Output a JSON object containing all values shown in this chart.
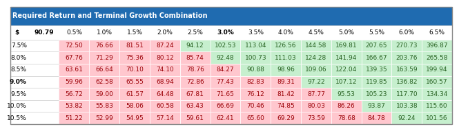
{
  "title": "Required Return and Terminal Growth Combination",
  "title_bg": "#1F6BB0",
  "title_color": "#FFFFFF",
  "header_label_topleft": "$",
  "col_ref_label": "90.79",
  "row_labels": [
    "7.5%",
    "8.0%",
    "8.5%",
    "9.0%",
    "9.5%",
    "10.0%",
    "10.5%"
  ],
  "col_labels": [
    "0.5%",
    "1.0%",
    "1.5%",
    "2.0%",
    "2.5%",
    "3.0%",
    "3.5%",
    "4.0%",
    "4.5%",
    "5.0%",
    "5.5%",
    "6.0%",
    "6.5%"
  ],
  "values": [
    [
      72.5,
      76.66,
      81.51,
      87.24,
      94.12,
      102.53,
      113.04,
      126.56,
      144.58,
      169.81,
      207.65,
      270.73,
      396.87
    ],
    [
      67.76,
      71.29,
      75.36,
      80.12,
      85.74,
      92.48,
      100.73,
      111.03,
      124.28,
      141.94,
      166.67,
      203.76,
      265.58
    ],
    [
      63.61,
      66.64,
      70.1,
      74.1,
      78.76,
      84.27,
      90.88,
      98.96,
      109.06,
      122.04,
      139.35,
      163.59,
      199.94
    ],
    [
      59.96,
      62.58,
      65.55,
      68.94,
      72.86,
      77.43,
      82.83,
      89.31,
      97.22,
      107.12,
      119.85,
      136.82,
      160.57
    ],
    [
      56.72,
      59.0,
      61.57,
      64.48,
      67.81,
      71.65,
      76.12,
      81.42,
      87.77,
      95.53,
      105.23,
      117.7,
      134.34
    ],
    [
      53.82,
      55.83,
      58.06,
      60.58,
      63.43,
      66.69,
      70.46,
      74.85,
      80.03,
      86.26,
      93.87,
      103.38,
      115.6
    ],
    [
      51.22,
      52.99,
      54.95,
      57.14,
      59.61,
      62.41,
      65.6,
      69.29,
      73.59,
      78.68,
      84.78,
      92.24,
      101.56
    ]
  ],
  "threshold": 90.79,
  "color_above": "#C6EFCE",
  "color_below": "#FFC7CE",
  "text_above": "#276221",
  "text_below": "#9C0006",
  "font_size": 6.5,
  "header_font_size": 6.5,
  "bold_col": "3.0%",
  "bold_row": "9.0%"
}
